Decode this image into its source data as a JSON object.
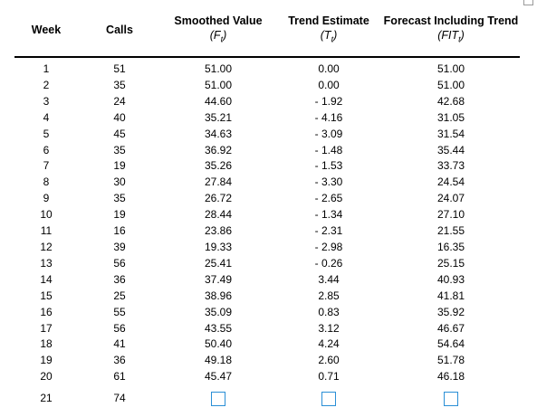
{
  "headers": {
    "week": "Week",
    "calls": "Calls",
    "smoothed_title": "Smoothed Value",
    "smoothed_symbol": "F",
    "smoothed_sub": "t",
    "trend_title": "Trend Estimate",
    "trend_symbol": "T",
    "trend_sub": "t",
    "forecast_title": "Forecast Including Trend",
    "forecast_symbol": "FIT",
    "forecast_sub": "t"
  },
  "rows": [
    {
      "week": "1",
      "calls": "51",
      "smoothed": "51.00",
      "trend": "0.00",
      "forecast": "51.00"
    },
    {
      "week": "2",
      "calls": "35",
      "smoothed": "51.00",
      "trend": "0.00",
      "forecast": "51.00"
    },
    {
      "week": "3",
      "calls": "24",
      "smoothed": "44.60",
      "trend": "- 1.92",
      "forecast": "42.68"
    },
    {
      "week": "4",
      "calls": "40",
      "smoothed": "35.21",
      "trend": "- 4.16",
      "forecast": "31.05"
    },
    {
      "week": "5",
      "calls": "45",
      "smoothed": "34.63",
      "trend": "- 3.09",
      "forecast": "31.54"
    },
    {
      "week": "6",
      "calls": "35",
      "smoothed": "36.92",
      "trend": "- 1.48",
      "forecast": "35.44"
    },
    {
      "week": "7",
      "calls": "19",
      "smoothed": "35.26",
      "trend": "- 1.53",
      "forecast": "33.73"
    },
    {
      "week": "8",
      "calls": "30",
      "smoothed": "27.84",
      "trend": "- 3.30",
      "forecast": "24.54"
    },
    {
      "week": "9",
      "calls": "35",
      "smoothed": "26.72",
      "trend": "- 2.65",
      "forecast": "24.07"
    },
    {
      "week": "10",
      "calls": "19",
      "smoothed": "28.44",
      "trend": "- 1.34",
      "forecast": "27.10"
    },
    {
      "week": "11",
      "calls": "16",
      "smoothed": "23.86",
      "trend": "- 2.31",
      "forecast": "21.55"
    },
    {
      "week": "12",
      "calls": "39",
      "smoothed": "19.33",
      "trend": "- 2.98",
      "forecast": "16.35"
    },
    {
      "week": "13",
      "calls": "56",
      "smoothed": "25.41",
      "trend": "- 0.26",
      "forecast": "25.15"
    },
    {
      "week": "14",
      "calls": "36",
      "smoothed": "37.49",
      "trend": "3.44",
      "forecast": "40.93"
    },
    {
      "week": "15",
      "calls": "25",
      "smoothed": "38.96",
      "trend": "2.85",
      "forecast": "41.81"
    },
    {
      "week": "16",
      "calls": "55",
      "smoothed": "35.09",
      "trend": "0.83",
      "forecast": "35.92"
    },
    {
      "week": "17",
      "calls": "56",
      "smoothed": "43.55",
      "trend": "3.12",
      "forecast": "46.67"
    },
    {
      "week": "18",
      "calls": "41",
      "smoothed": "50.40",
      "trend": "4.24",
      "forecast": "54.64"
    },
    {
      "week": "19",
      "calls": "36",
      "smoothed": "49.18",
      "trend": "2.60",
      "forecast": "51.78"
    },
    {
      "week": "20",
      "calls": "61",
      "smoothed": "45.47",
      "trend": "0.71",
      "forecast": "46.18"
    }
  ],
  "last_row": {
    "week": "21",
    "calls": "74",
    "smoothed": "",
    "trend": "",
    "forecast": ""
  },
  "colors": {
    "answer_box_border": "#2a8fd6",
    "header_rule": "#000000"
  }
}
